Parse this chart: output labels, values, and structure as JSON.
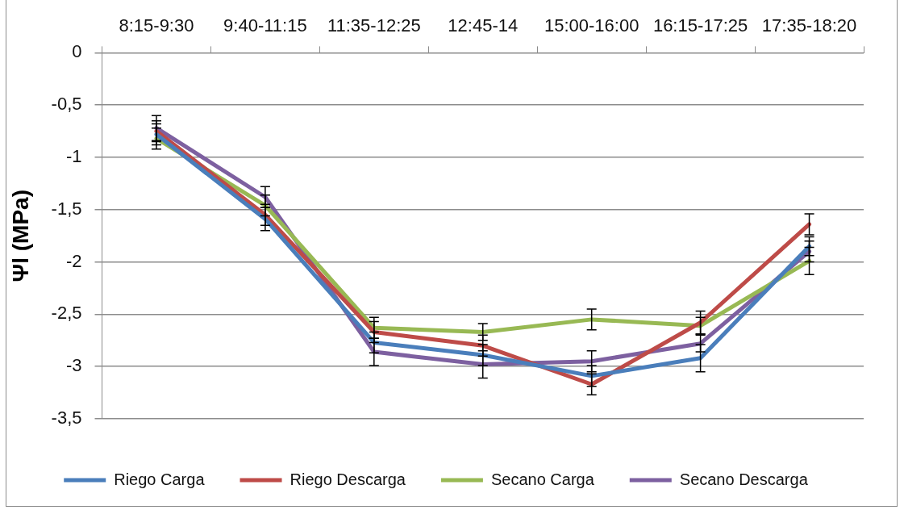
{
  "chart_data": {
    "type": "line",
    "ylabel": "Ψl (MPa)",
    "categories": [
      "8:15-9:30",
      "9:40-11:15",
      "11:35-12:25",
      "12:45-14",
      "15:00-16:00",
      "16:15-17:25",
      "17:35-18:20"
    ],
    "series": [
      {
        "name": "Riego Carga",
        "color": "#4a7ebb",
        "values": [
          -0.78,
          -1.59,
          -2.77,
          -2.89,
          -3.09,
          -2.92,
          -1.85
        ],
        "errors": [
          0.1,
          0.11,
          0.1,
          0.1,
          0.1,
          0.13,
          0.09
        ]
      },
      {
        "name": "Riego Descarga",
        "color": "#be4b48",
        "values": [
          -0.75,
          -1.55,
          -2.67,
          -2.8,
          -3.17,
          -2.58,
          -1.64
        ],
        "errors": [
          0.1,
          0.1,
          0.1,
          0.1,
          0.1,
          0.11,
          0.1
        ]
      },
      {
        "name": "Secano Carga",
        "color": "#98b954",
        "values": [
          -0.82,
          -1.46,
          -2.63,
          -2.67,
          -2.55,
          -2.61,
          -1.99
        ],
        "errors": [
          0.1,
          0.1,
          0.1,
          0.08,
          0.1,
          0.08,
          0.13
        ]
      },
      {
        "name": "Secano Descarga",
        "color": "#7d60a0",
        "values": [
          -0.72,
          -1.38,
          -2.86,
          -2.98,
          -2.95,
          -2.78,
          -1.9
        ],
        "errors": [
          0.12,
          0.1,
          0.13,
          0.13,
          0.1,
          0.08,
          0.1
        ]
      }
    ],
    "ylim": [
      -3.5,
      0
    ],
    "yticks": [
      0,
      {
        "value": -0.5,
        "label": "-0,5"
      },
      -1,
      {
        "value": -1.5,
        "label": "-1,5"
      },
      -2,
      {
        "value": -2.5,
        "label": "-2,5"
      },
      -3,
      {
        "value": -3.5,
        "label": "-3,5"
      }
    ],
    "grid": "y",
    "legend": "bottom",
    "line_style": "solid"
  }
}
